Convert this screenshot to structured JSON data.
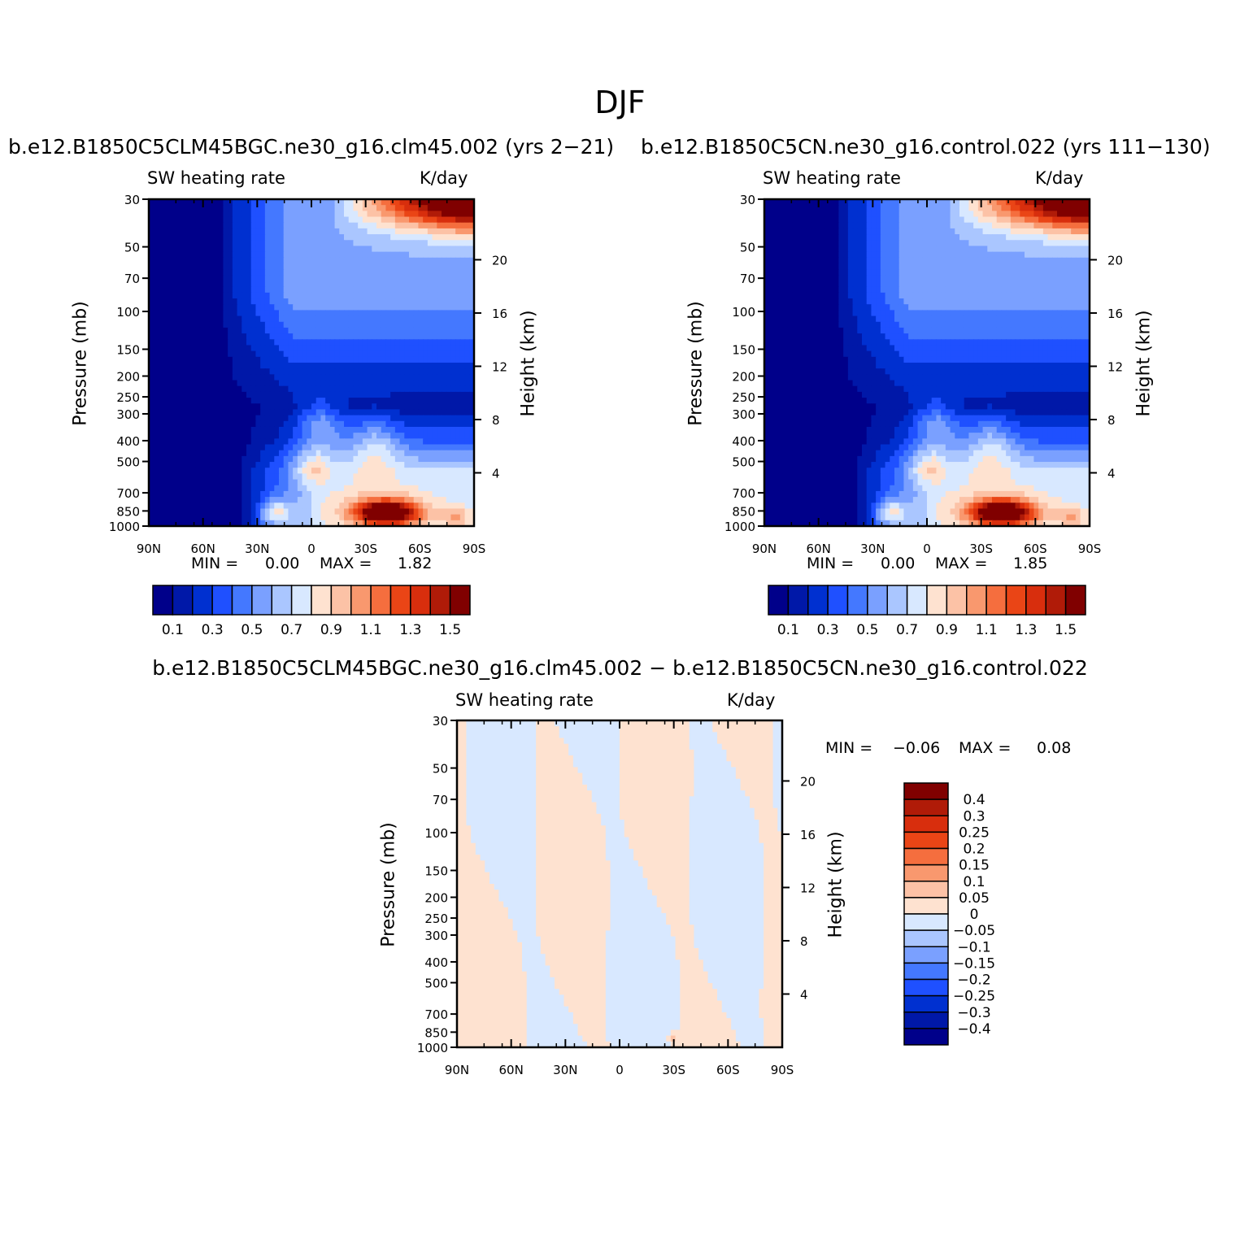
{
  "figure": {
    "title": "DJF",
    "left_run": "b.e12.B1850C5CLM45BGC.ne30_g16.clm45.002 (yrs 2−21)",
    "right_run": "b.e12.B1850C5CN.ne30_g16.control.022 (yrs 111−130)",
    "diff_title": "b.e12.B1850C5CLM45BGC.ne30_g16.clm45.002 − b.e12.B1850C5CN.ne30_g16.control.022"
  },
  "chart_data": [
    {
      "type": "contour",
      "variable": "SW heating rate",
      "units": "K/day",
      "ylabel": "Pressure (mb)",
      "y2label": "Height (km)",
      "x_ticks": [
        "90N",
        "60N",
        "30N",
        "0",
        "30S",
        "60S",
        "90S"
      ],
      "x_range": [
        90,
        -90
      ],
      "y_ticks": [
        30,
        50,
        70,
        100,
        150,
        200,
        250,
        300,
        400,
        500,
        700,
        850,
        1000
      ],
      "y_range_mb": [
        30,
        1000
      ],
      "y_scale": "log",
      "height_ticks_km": [
        20,
        16,
        12,
        8,
        4
      ],
      "min_label": "MIN =",
      "min": "0.00",
      "max_label": "MAX =",
      "max": "1.82",
      "levels": [
        0.1,
        0.2,
        0.3,
        0.4,
        0.5,
        0.6,
        0.7,
        0.8,
        0.9,
        1.0,
        1.1,
        1.2,
        1.3,
        1.4,
        1.5
      ],
      "colorbar_labels": [
        "0.1",
        "0.3",
        "0.5",
        "0.7",
        "0.9",
        "1.1",
        "1.3",
        "1.5"
      ],
      "colors": [
        "#00008a",
        "#0018a8",
        "#0030d0",
        "#1f50ff",
        "#4478ff",
        "#7aa0ff",
        "#aac6ff",
        "#d8e8ff",
        "#fee2d0",
        "#fcc2a6",
        "#f9986e",
        "#f56e3e",
        "#ea4516",
        "#d82e0d",
        "#b01b08",
        "#800000"
      ],
      "features": [
        {
          "lat": -40,
          "p": 870,
          "value": 1.82
        },
        {
          "lat": 20,
          "p": 870,
          "value": 1.2
        },
        {
          "lat": 0,
          "p": 540,
          "value": 1.0
        },
        {
          "lat": -90,
          "p": 30,
          "value": 1.5
        }
      ]
    },
    {
      "type": "contour",
      "variable": "SW heating rate",
      "units": "K/day",
      "ylabel": "Pressure (mb)",
      "y2label": "Height (km)",
      "x_ticks": [
        "90N",
        "60N",
        "30N",
        "0",
        "30S",
        "60S",
        "90S"
      ],
      "x_range": [
        90,
        -90
      ],
      "y_ticks": [
        30,
        50,
        70,
        100,
        150,
        200,
        250,
        300,
        400,
        500,
        700,
        850,
        1000
      ],
      "y_range_mb": [
        30,
        1000
      ],
      "y_scale": "log",
      "height_ticks_km": [
        20,
        16,
        12,
        8,
        4
      ],
      "min_label": "MIN =",
      "min": "0.00",
      "max_label": "MAX =",
      "max": "1.85",
      "levels": [
        0.1,
        0.2,
        0.3,
        0.4,
        0.5,
        0.6,
        0.7,
        0.8,
        0.9,
        1.0,
        1.1,
        1.2,
        1.3,
        1.4,
        1.5
      ],
      "colorbar_labels": [
        "0.1",
        "0.3",
        "0.5",
        "0.7",
        "0.9",
        "1.1",
        "1.3",
        "1.5"
      ],
      "colors": [
        "#00008a",
        "#0018a8",
        "#0030d0",
        "#1f50ff",
        "#4478ff",
        "#7aa0ff",
        "#aac6ff",
        "#d8e8ff",
        "#fee2d0",
        "#fcc2a6",
        "#f9986e",
        "#f56e3e",
        "#ea4516",
        "#d82e0d",
        "#b01b08",
        "#800000"
      ],
      "features": [
        {
          "lat": -40,
          "p": 870,
          "value": 1.85
        },
        {
          "lat": 20,
          "p": 870,
          "value": 1.2
        },
        {
          "lat": 0,
          "p": 540,
          "value": 1.0
        },
        {
          "lat": -90,
          "p": 30,
          "value": 1.5
        }
      ]
    },
    {
      "type": "contour",
      "variable": "SW heating rate",
      "units": "K/day",
      "ylabel": "Pressure (mb)",
      "y2label": "Height (km)",
      "x_ticks": [
        "90N",
        "60N",
        "30N",
        "0",
        "30S",
        "60S",
        "90S"
      ],
      "x_range": [
        90,
        -90
      ],
      "y_ticks": [
        30,
        50,
        70,
        100,
        150,
        200,
        250,
        300,
        400,
        500,
        700,
        850,
        1000
      ],
      "y_range_mb": [
        30,
        1000
      ],
      "y_scale": "log",
      "height_ticks_km": [
        20,
        16,
        12,
        8,
        4
      ],
      "min_label": "MIN =",
      "min": "−0.06",
      "max_label": "MAX =",
      "max": "0.08",
      "levels": [
        -0.4,
        -0.3,
        -0.25,
        -0.2,
        -0.15,
        -0.1,
        -0.05,
        0,
        0.05,
        0.1,
        0.15,
        0.2,
        0.25,
        0.3,
        0.4
      ],
      "colorbar_labels": [
        "0.4",
        "0.3",
        "0.25",
        "0.2",
        "0.15",
        "0.1",
        "0.05",
        "0",
        "−0.05",
        "−0.1",
        "−0.15",
        "−0.2",
        "−0.25",
        "−0.3",
        "−0.4"
      ],
      "colors": [
        "#00008a",
        "#0018a8",
        "#0030d0",
        "#1f50ff",
        "#4478ff",
        "#7aa0ff",
        "#aac6ff",
        "#d8e8ff",
        "#fee2d0",
        "#fcc2a6",
        "#f9986e",
        "#f56e3e",
        "#ea4516",
        "#d82e0d",
        "#b01b08",
        "#800000"
      ],
      "features": [
        {
          "lat": -30,
          "p": 950,
          "value": 0.08
        },
        {
          "lat": -45,
          "p": 940,
          "value": -0.06
        }
      ]
    }
  ]
}
